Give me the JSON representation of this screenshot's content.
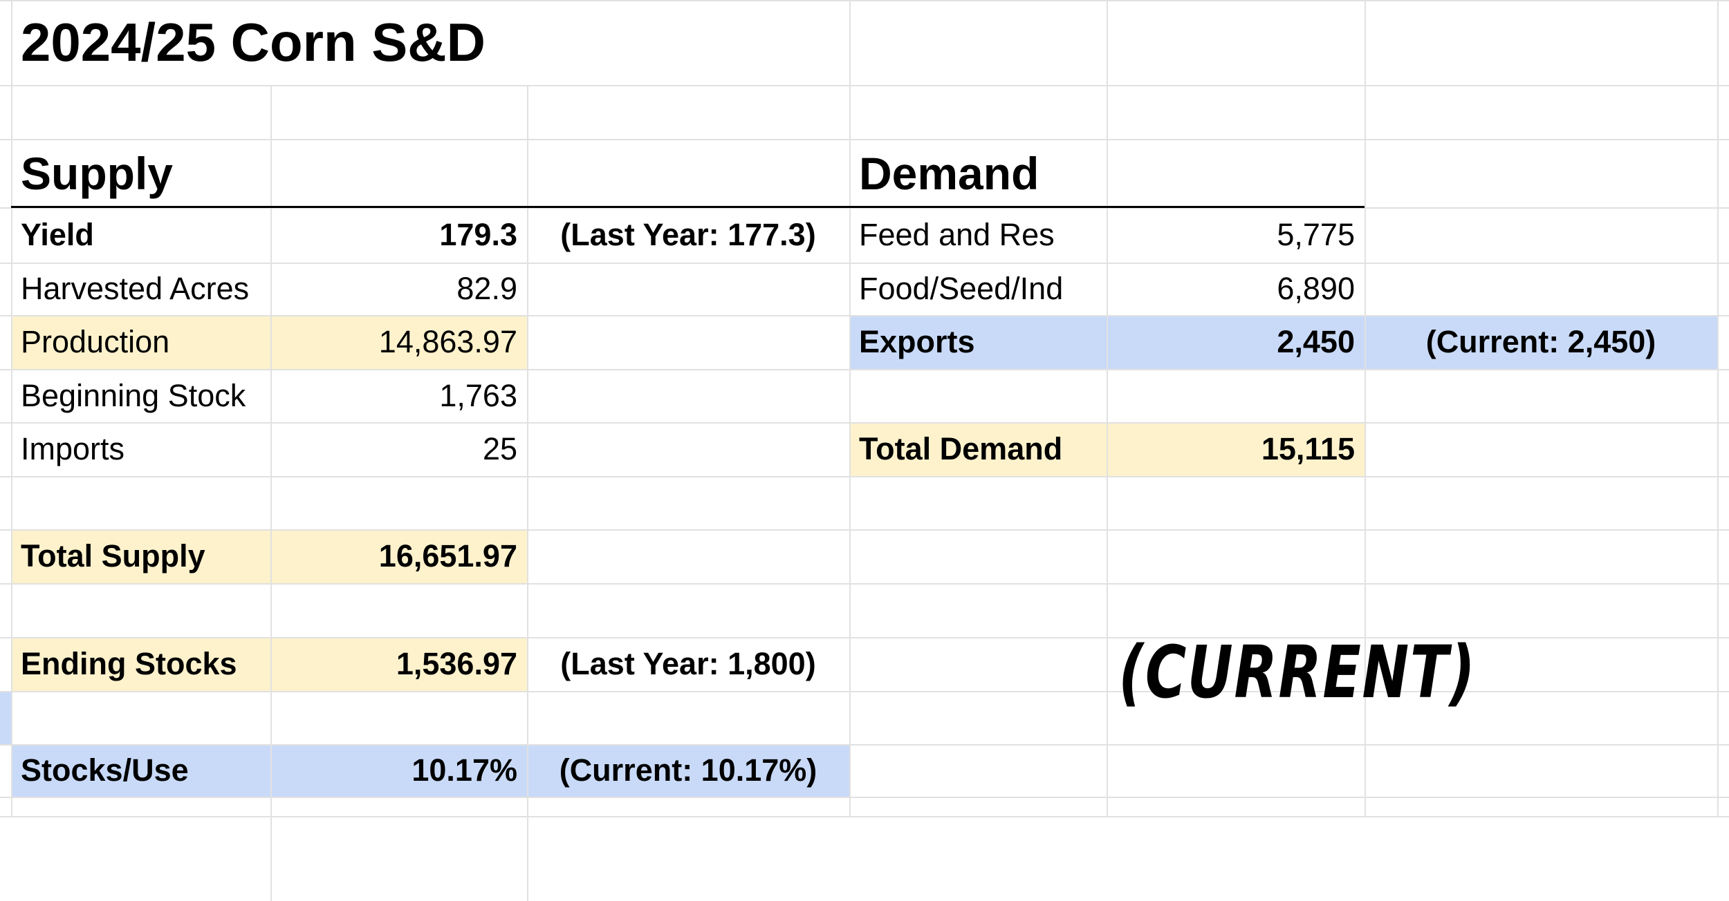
{
  "title": "2024/25 Corn S&D",
  "supply": {
    "heading": "Supply",
    "rows": [
      {
        "label": "Yield",
        "value": "179.3",
        "note": "(Last Year: 177.3)"
      },
      {
        "label": "Harvested Acres",
        "value": "82.9"
      },
      {
        "label": "Production",
        "value": "14,863.97"
      },
      {
        "label": "Beginning Stock",
        "value": "1,763"
      },
      {
        "label": "Imports",
        "value": "25"
      },
      {
        "label": "Total Supply",
        "value": "16,651.97"
      },
      {
        "label": "Ending Stocks",
        "value": "1,536.97",
        "note": "(Last Year: 1,800)"
      },
      {
        "label": "Stocks/Use",
        "value": "10.17%",
        "note": "(Current: 10.17%)"
      }
    ]
  },
  "demand": {
    "heading": "Demand",
    "rows": [
      {
        "label": "Feed and Res",
        "value": "5,775"
      },
      {
        "label": "Food/Seed/Ind",
        "value": "6,890"
      },
      {
        "label": "Exports",
        "value": "2,450",
        "note": "(Current: 2,450)"
      },
      {
        "label": "Total Demand",
        "value": "15,115"
      }
    ]
  },
  "annotation": "(CURRENT)"
}
